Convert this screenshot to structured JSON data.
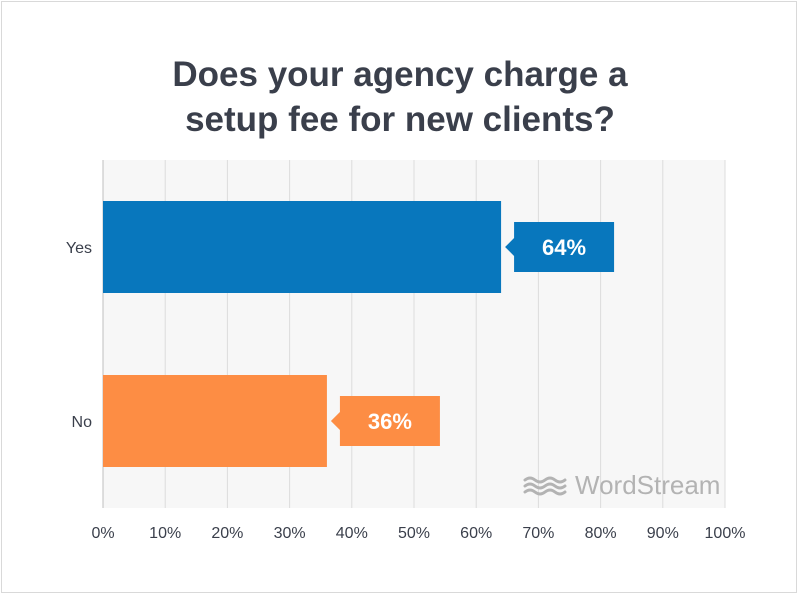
{
  "title_line1": "Does your agency charge a",
  "title_line2": "setup fee for new clients?",
  "brand": "WordStream",
  "colors": {
    "yes": "#0877bd",
    "no": "#fd8d44",
    "grid": "#dcdcdc",
    "plot_bg": "#f7f7f7",
    "text": "#3a3f4b"
  },
  "chart_data": {
    "type": "bar",
    "orientation": "horizontal",
    "categories": [
      "Yes",
      "No"
    ],
    "values": [
      64,
      36
    ],
    "data_labels": [
      "64%",
      "36%"
    ],
    "xlim": [
      0,
      100
    ],
    "xticks": [
      "0%",
      "10%",
      "20%",
      "30%",
      "40%",
      "50%",
      "60%",
      "70%",
      "80%",
      "90%",
      "100%"
    ],
    "grid": true,
    "title": "Does your agency charge a setup fee for new clients?"
  }
}
